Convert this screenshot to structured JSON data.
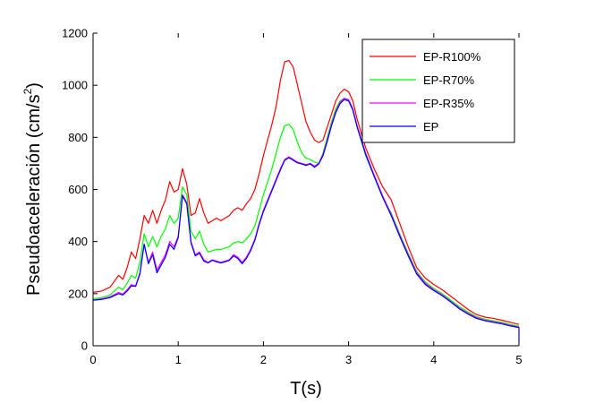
{
  "chart_data": {
    "type": "line",
    "xlabel": "T(s)",
    "ylabel_main": "Pseudoaceleración (cm/s",
    "ylabel_sup": "2",
    "ylabel_close": ")",
    "xlim": [
      0,
      5
    ],
    "ylim": [
      0,
      1200
    ],
    "xticks": [
      "0",
      "1",
      "2",
      "3",
      "4",
      "5"
    ],
    "yticks": [
      "0",
      "200",
      "400",
      "600",
      "800",
      "1000",
      "1200"
    ],
    "grid": false,
    "legend_position": "top-right",
    "series": [
      {
        "name": "EP-R100%",
        "color": "#ff0000",
        "points": [
          [
            0,
            205
          ],
          [
            0.1,
            210
          ],
          [
            0.2,
            225
          ],
          [
            0.3,
            270
          ],
          [
            0.35,
            255
          ],
          [
            0.4,
            300
          ],
          [
            0.45,
            360
          ],
          [
            0.5,
            335
          ],
          [
            0.55,
            410
          ],
          [
            0.6,
            500
          ],
          [
            0.65,
            470
          ],
          [
            0.7,
            520
          ],
          [
            0.75,
            470
          ],
          [
            0.8,
            520
          ],
          [
            0.85,
            560
          ],
          [
            0.9,
            630
          ],
          [
            0.95,
            590
          ],
          [
            1.0,
            600
          ],
          [
            1.05,
            680
          ],
          [
            1.1,
            620
          ],
          [
            1.15,
            500
          ],
          [
            1.2,
            510
          ],
          [
            1.25,
            565
          ],
          [
            1.3,
            510
          ],
          [
            1.35,
            470
          ],
          [
            1.4,
            480
          ],
          [
            1.45,
            490
          ],
          [
            1.5,
            480
          ],
          [
            1.55,
            490
          ],
          [
            1.6,
            500
          ],
          [
            1.65,
            520
          ],
          [
            1.7,
            530
          ],
          [
            1.75,
            520
          ],
          [
            1.8,
            545
          ],
          [
            1.85,
            565
          ],
          [
            1.9,
            600
          ],
          [
            1.95,
            660
          ],
          [
            2.0,
            730
          ],
          [
            2.05,
            790
          ],
          [
            2.1,
            850
          ],
          [
            2.15,
            920
          ],
          [
            2.2,
            1020
          ],
          [
            2.25,
            1090
          ],
          [
            2.3,
            1095
          ],
          [
            2.35,
            1070
          ],
          [
            2.4,
            1000
          ],
          [
            2.45,
            930
          ],
          [
            2.5,
            860
          ],
          [
            2.55,
            820
          ],
          [
            2.6,
            790
          ],
          [
            2.65,
            780
          ],
          [
            2.7,
            790
          ],
          [
            2.75,
            840
          ],
          [
            2.8,
            890
          ],
          [
            2.85,
            940
          ],
          [
            2.9,
            970
          ],
          [
            2.95,
            985
          ],
          [
            3.0,
            975
          ],
          [
            3.05,
            940
          ],
          [
            3.1,
            870
          ],
          [
            3.2,
            760
          ],
          [
            3.3,
            680
          ],
          [
            3.4,
            610
          ],
          [
            3.5,
            560
          ],
          [
            3.6,
            470
          ],
          [
            3.7,
            380
          ],
          [
            3.8,
            300
          ],
          [
            3.9,
            260
          ],
          [
            4.0,
            235
          ],
          [
            4.1,
            215
          ],
          [
            4.2,
            190
          ],
          [
            4.3,
            165
          ],
          [
            4.4,
            140
          ],
          [
            4.5,
            120
          ],
          [
            4.6,
            110
          ],
          [
            4.7,
            105
          ],
          [
            4.8,
            98
          ],
          [
            4.9,
            90
          ],
          [
            5.0,
            82
          ]
        ]
      },
      {
        "name": "EP-R70%",
        "color": "#00ff00",
        "points": [
          [
            0,
            180
          ],
          [
            0.1,
            185
          ],
          [
            0.2,
            195
          ],
          [
            0.3,
            225
          ],
          [
            0.35,
            215
          ],
          [
            0.4,
            240
          ],
          [
            0.45,
            270
          ],
          [
            0.5,
            260
          ],
          [
            0.55,
            320
          ],
          [
            0.6,
            430
          ],
          [
            0.65,
            380
          ],
          [
            0.7,
            420
          ],
          [
            0.75,
            380
          ],
          [
            0.8,
            420
          ],
          [
            0.85,
            450
          ],
          [
            0.9,
            500
          ],
          [
            0.95,
            470
          ],
          [
            1.0,
            490
          ],
          [
            1.05,
            610
          ],
          [
            1.1,
            580
          ],
          [
            1.15,
            440
          ],
          [
            1.2,
            410
          ],
          [
            1.25,
            440
          ],
          [
            1.3,
            390
          ],
          [
            1.35,
            360
          ],
          [
            1.4,
            365
          ],
          [
            1.45,
            370
          ],
          [
            1.5,
            370
          ],
          [
            1.55,
            375
          ],
          [
            1.6,
            380
          ],
          [
            1.65,
            395
          ],
          [
            1.7,
            400
          ],
          [
            1.75,
            395
          ],
          [
            1.8,
            410
          ],
          [
            1.85,
            430
          ],
          [
            1.9,
            460
          ],
          [
            1.95,
            520
          ],
          [
            2.0,
            580
          ],
          [
            2.05,
            630
          ],
          [
            2.1,
            680
          ],
          [
            2.15,
            740
          ],
          [
            2.2,
            800
          ],
          [
            2.25,
            845
          ],
          [
            2.3,
            850
          ],
          [
            2.35,
            830
          ],
          [
            2.4,
            780
          ],
          [
            2.45,
            740
          ],
          [
            2.5,
            720
          ],
          [
            2.55,
            715
          ],
          [
            2.6,
            705
          ],
          [
            2.65,
            700
          ],
          [
            2.7,
            740
          ],
          [
            2.75,
            800
          ],
          [
            2.8,
            860
          ],
          [
            2.85,
            910
          ],
          [
            2.9,
            940
          ],
          [
            2.95,
            950
          ],
          [
            3.0,
            940
          ],
          [
            3.05,
            905
          ],
          [
            3.1,
            840
          ],
          [
            3.2,
            730
          ],
          [
            3.3,
            650
          ],
          [
            3.4,
            570
          ],
          [
            3.5,
            510
          ],
          [
            3.6,
            430
          ],
          [
            3.7,
            355
          ],
          [
            3.8,
            285
          ],
          [
            3.9,
            245
          ],
          [
            4.0,
            220
          ],
          [
            4.1,
            200
          ],
          [
            4.2,
            175
          ],
          [
            4.3,
            150
          ],
          [
            4.4,
            130
          ],
          [
            4.5,
            112
          ],
          [
            4.6,
            102
          ],
          [
            4.7,
            96
          ],
          [
            4.8,
            90
          ],
          [
            4.9,
            82
          ],
          [
            5.0,
            75
          ]
        ]
      },
      {
        "name": "EP-R35%",
        "color": "#ff00ff",
        "points": [
          [
            0,
            175
          ],
          [
            0.1,
            180
          ],
          [
            0.2,
            188
          ],
          [
            0.3,
            205
          ],
          [
            0.35,
            198
          ],
          [
            0.4,
            215
          ],
          [
            0.45,
            235
          ],
          [
            0.5,
            230
          ],
          [
            0.55,
            280
          ],
          [
            0.6,
            390
          ],
          [
            0.65,
            320
          ],
          [
            0.7,
            360
          ],
          [
            0.75,
            290
          ],
          [
            0.8,
            320
          ],
          [
            0.85,
            350
          ],
          [
            0.9,
            400
          ],
          [
            0.95,
            380
          ],
          [
            1.0,
            420
          ],
          [
            1.05,
            580
          ],
          [
            1.1,
            550
          ],
          [
            1.15,
            400
          ],
          [
            1.2,
            350
          ],
          [
            1.25,
            360
          ],
          [
            1.3,
            330
          ],
          [
            1.35,
            320
          ],
          [
            1.4,
            330
          ],
          [
            1.45,
            325
          ],
          [
            1.5,
            320
          ],
          [
            1.55,
            325
          ],
          [
            1.6,
            330
          ],
          [
            1.65,
            350
          ],
          [
            1.7,
            340
          ],
          [
            1.75,
            320
          ],
          [
            1.8,
            340
          ],
          [
            1.85,
            370
          ],
          [
            1.9,
            410
          ],
          [
            1.95,
            470
          ],
          [
            2.0,
            520
          ],
          [
            2.05,
            560
          ],
          [
            2.1,
            600
          ],
          [
            2.15,
            640
          ],
          [
            2.2,
            680
          ],
          [
            2.25,
            715
          ],
          [
            2.3,
            725
          ],
          [
            2.35,
            715
          ],
          [
            2.4,
            705
          ],
          [
            2.45,
            700
          ],
          [
            2.5,
            695
          ],
          [
            2.55,
            700
          ],
          [
            2.6,
            690
          ],
          [
            2.65,
            700
          ],
          [
            2.7,
            735
          ],
          [
            2.75,
            790
          ],
          [
            2.8,
            850
          ],
          [
            2.85,
            900
          ],
          [
            2.9,
            935
          ],
          [
            2.95,
            950
          ],
          [
            3.0,
            945
          ],
          [
            3.05,
            910
          ],
          [
            3.1,
            845
          ],
          [
            3.2,
            740
          ],
          [
            3.3,
            655
          ],
          [
            3.4,
            575
          ],
          [
            3.5,
            505
          ],
          [
            3.6,
            425
          ],
          [
            3.7,
            350
          ],
          [
            3.8,
            280
          ],
          [
            3.9,
            240
          ],
          [
            4.0,
            215
          ],
          [
            4.1,
            195
          ],
          [
            4.2,
            170
          ],
          [
            4.3,
            145
          ],
          [
            4.4,
            125
          ],
          [
            4.5,
            108
          ],
          [
            4.6,
            98
          ],
          [
            4.7,
            92
          ],
          [
            4.8,
            86
          ],
          [
            4.9,
            78
          ],
          [
            5.0,
            72
          ]
        ]
      },
      {
        "name": "EP",
        "color": "#0000ff",
        "points": [
          [
            0,
            175
          ],
          [
            0.1,
            178
          ],
          [
            0.2,
            185
          ],
          [
            0.3,
            200
          ],
          [
            0.35,
            195
          ],
          [
            0.4,
            210
          ],
          [
            0.45,
            230
          ],
          [
            0.5,
            228
          ],
          [
            0.55,
            275
          ],
          [
            0.6,
            390
          ],
          [
            0.65,
            315
          ],
          [
            0.7,
            350
          ],
          [
            0.75,
            280
          ],
          [
            0.8,
            310
          ],
          [
            0.85,
            340
          ],
          [
            0.9,
            390
          ],
          [
            0.95,
            370
          ],
          [
            1.0,
            415
          ],
          [
            1.05,
            575
          ],
          [
            1.1,
            545
          ],
          [
            1.15,
            395
          ],
          [
            1.2,
            345
          ],
          [
            1.25,
            355
          ],
          [
            1.3,
            325
          ],
          [
            1.35,
            318
          ],
          [
            1.4,
            328
          ],
          [
            1.45,
            322
          ],
          [
            1.5,
            318
          ],
          [
            1.55,
            322
          ],
          [
            1.6,
            328
          ],
          [
            1.65,
            345
          ],
          [
            1.7,
            335
          ],
          [
            1.75,
            315
          ],
          [
            1.8,
            335
          ],
          [
            1.85,
            365
          ],
          [
            1.9,
            405
          ],
          [
            1.95,
            465
          ],
          [
            2.0,
            515
          ],
          [
            2.05,
            555
          ],
          [
            2.1,
            595
          ],
          [
            2.15,
            635
          ],
          [
            2.2,
            675
          ],
          [
            2.25,
            712
          ],
          [
            2.3,
            722
          ],
          [
            2.35,
            712
          ],
          [
            2.4,
            702
          ],
          [
            2.45,
            698
          ],
          [
            2.5,
            692
          ],
          [
            2.55,
            698
          ],
          [
            2.6,
            685
          ],
          [
            2.65,
            698
          ],
          [
            2.7,
            730
          ],
          [
            2.75,
            785
          ],
          [
            2.8,
            845
          ],
          [
            2.85,
            895
          ],
          [
            2.9,
            930
          ],
          [
            2.95,
            945
          ],
          [
            3.0,
            940
          ],
          [
            3.05,
            905
          ],
          [
            3.1,
            840
          ],
          [
            3.2,
            735
          ],
          [
            3.3,
            650
          ],
          [
            3.4,
            570
          ],
          [
            3.5,
            500
          ],
          [
            3.6,
            420
          ],
          [
            3.7,
            345
          ],
          [
            3.8,
            275
          ],
          [
            3.9,
            235
          ],
          [
            4.0,
            212
          ],
          [
            4.1,
            192
          ],
          [
            4.2,
            168
          ],
          [
            4.3,
            142
          ],
          [
            4.4,
            122
          ],
          [
            4.5,
            105
          ],
          [
            4.6,
            96
          ],
          [
            4.7,
            90
          ],
          [
            4.8,
            84
          ],
          [
            4.9,
            76
          ],
          [
            5.0,
            70
          ],
          [
            5.0,
            15
          ]
        ]
      }
    ]
  }
}
